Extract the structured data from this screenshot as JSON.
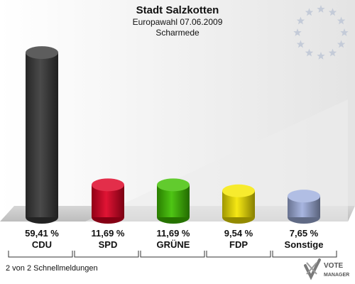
{
  "header": {
    "title": "Stadt Salzkotten",
    "subtitle": "Europawahl 07.06.2009",
    "district": "Scharmede"
  },
  "footer": {
    "note": "2 von 2 Schnellmeldungen",
    "brand_top": "VOTE",
    "brand_bottom": "MANAGER"
  },
  "colors": {
    "CDU": "#3a3a3a",
    "SPD": "#dd0022",
    "GRÜNE": "#3fc000",
    "FDP": "#f5e600",
    "Sonstige": "#a0b0de"
  },
  "chart_data": {
    "type": "bar",
    "title": "Stadt Salzkotten",
    "subtitle": "Europawahl 07.06.2009",
    "categories": [
      "CDU",
      "SPD",
      "GRÜNE",
      "FDP",
      "Sonstige"
    ],
    "values": [
      59.41,
      11.69,
      11.69,
      9.54,
      7.65
    ],
    "value_labels": [
      "59,41 %",
      "11,69 %",
      "11,69 %",
      "9,54 %",
      "7,65 %"
    ],
    "xlabel": "",
    "ylabel": "",
    "ylim": [
      0,
      62
    ],
    "grid": false,
    "legend": "none"
  }
}
